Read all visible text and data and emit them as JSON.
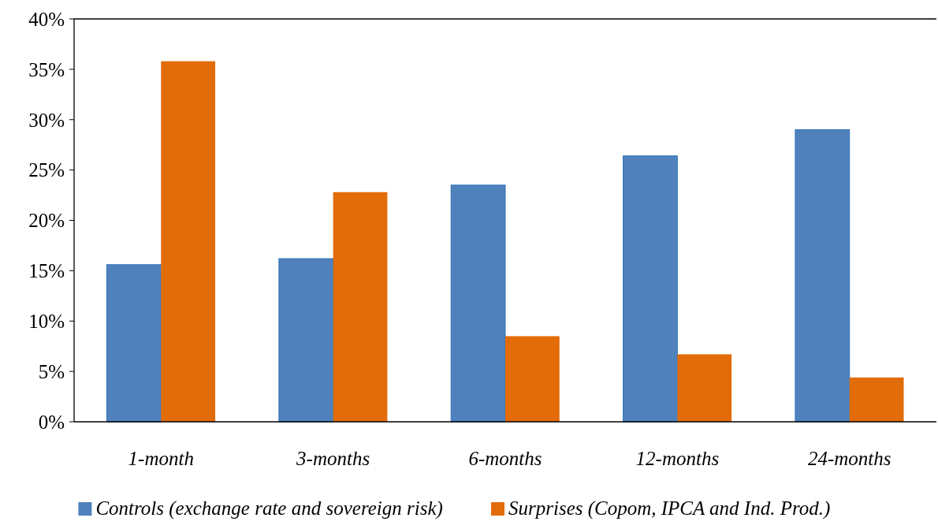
{
  "chart_data": {
    "type": "bar",
    "categories": [
      "1-month",
      "3-months",
      "6-months",
      "12-months",
      "24-months"
    ],
    "series": [
      {
        "name": "Controls (exchange rate and sovereign risk)",
        "color": "#4f81bd",
        "values": [
          15.6,
          16.2,
          23.5,
          26.4,
          29.0
        ]
      },
      {
        "name": "Surprises (Copom, IPCA and Ind. Prod.)",
        "color": "#e36c0a",
        "values": [
          35.8,
          22.8,
          8.5,
          6.7,
          4.4
        ]
      }
    ],
    "ylim": [
      0,
      40
    ],
    "yticks": [
      {
        "value": 0,
        "label": "0%"
      },
      {
        "value": 5,
        "label": "5%"
      },
      {
        "value": 10,
        "label": "10%"
      },
      {
        "value": 15,
        "label": "15%"
      },
      {
        "value": 20,
        "label": "20%"
      },
      {
        "value": 25,
        "label": "25%"
      },
      {
        "value": 30,
        "label": "30%"
      },
      {
        "value": 35,
        "label": "35%"
      },
      {
        "value": 40,
        "label": "40%"
      }
    ],
    "grid": false,
    "legend": "bottom"
  }
}
